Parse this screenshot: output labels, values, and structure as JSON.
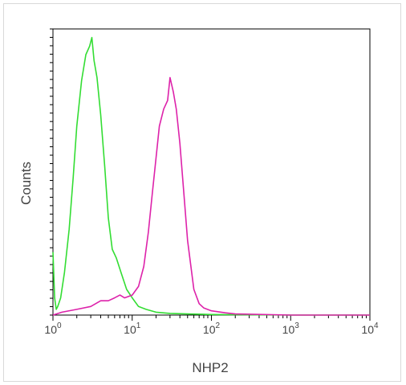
{
  "chart_data": {
    "type": "line",
    "title": "",
    "xlabel": "NHP2",
    "ylabel": "Counts",
    "xscale": "log",
    "xlim": [
      1,
      10000
    ],
    "ylim": [
      0,
      1
    ],
    "grid": false,
    "legend": "none",
    "xticks": [
      {
        "base": "10",
        "exp": "0"
      },
      {
        "base": "10",
        "exp": "1"
      },
      {
        "base": "10",
        "exp": "2"
      },
      {
        "base": "10",
        "exp": "3"
      },
      {
        "base": "10",
        "exp": "4"
      }
    ],
    "series": [
      {
        "color": "#33dd33",
        "x": [
          1.0,
          1.05,
          1.1,
          1.15,
          1.25,
          1.4,
          1.6,
          1.8,
          2.0,
          2.3,
          2.6,
          2.9,
          3.1,
          3.3,
          3.6,
          4.0,
          4.5,
          5.0,
          5.6,
          6.3,
          7.2,
          8.5,
          10,
          12,
          15,
          20,
          30,
          50,
          100,
          1000,
          10000
        ],
        "y": [
          0.22,
          0.06,
          0.02,
          0.03,
          0.06,
          0.15,
          0.3,
          0.48,
          0.66,
          0.82,
          0.91,
          0.94,
          0.97,
          0.89,
          0.83,
          0.7,
          0.52,
          0.34,
          0.23,
          0.2,
          0.15,
          0.09,
          0.06,
          0.03,
          0.02,
          0.01,
          0.006,
          0.004,
          0.002,
          0.0,
          0.0
        ]
      },
      {
        "color": "#dd22aa",
        "x": [
          1.0,
          1.3,
          2,
          3,
          4,
          5,
          6,
          7,
          8,
          10,
          12,
          14,
          16,
          18,
          20,
          22,
          25,
          28,
          30,
          33,
          36,
          40,
          45,
          50,
          60,
          70,
          80,
          100,
          150,
          200,
          1000,
          10000
        ],
        "y": [
          0.0,
          0.01,
          0.02,
          0.03,
          0.05,
          0.05,
          0.06,
          0.07,
          0.06,
          0.07,
          0.1,
          0.17,
          0.29,
          0.43,
          0.55,
          0.66,
          0.72,
          0.75,
          0.83,
          0.78,
          0.72,
          0.6,
          0.42,
          0.26,
          0.09,
          0.04,
          0.025,
          0.015,
          0.008,
          0.004,
          0.0,
          0.0
        ]
      }
    ]
  }
}
